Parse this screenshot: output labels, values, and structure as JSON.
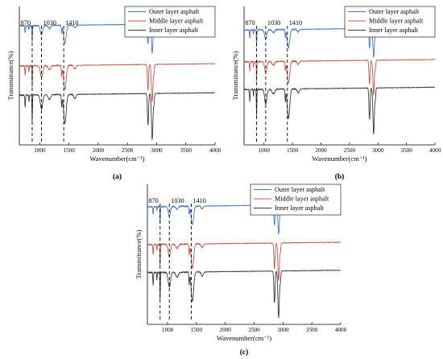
{
  "chart_data": [
    {
      "panel_label": "(a)",
      "type": "line",
      "xlabel": "Wavenumber(cm⁻¹)",
      "ylabel": "Transmittance(%)",
      "xlim": [
        650,
        4000
      ],
      "xticks": [
        1000,
        1500,
        2000,
        2500,
        3000,
        3500,
        4000
      ],
      "y_ticks_shown": false,
      "annotations": [
        870,
        1030,
        1410
      ],
      "legend_placement": "top-right",
      "series": [
        {
          "name": "Outer layer asphalt",
          "color": "#4a72c4",
          "offset": 0.86,
          "depth_scale": 1.0
        },
        {
          "name": "Middle layer asphalt",
          "color": "#c0574b",
          "offset": 0.57,
          "depth_scale": 1.3
        },
        {
          "name": "Inner layer asphalt",
          "color": "#3a3a3a",
          "offset": 0.36,
          "depth_scale": 1.6
        }
      ]
    },
    {
      "panel_label": "(b)",
      "type": "line",
      "xlabel": "Wavenumber(cm⁻¹)",
      "ylabel": "Transmittance(%)",
      "xlim": [
        650,
        4000
      ],
      "xticks": [
        1000,
        1500,
        2000,
        2500,
        3000,
        3500,
        4000
      ],
      "y_ticks_shown": false,
      "annotations": [
        870,
        1030,
        1410
      ],
      "legend_placement": "top-right",
      "series": [
        {
          "name": "Outer layer asphalt",
          "color": "#4a72c4",
          "offset": 0.83,
          "depth_scale": 1.0
        },
        {
          "name": "Middle layer asphalt",
          "color": "#c0574b",
          "offset": 0.6,
          "depth_scale": 1.2
        },
        {
          "name": "Inner layer asphalt",
          "color": "#3a3a3a",
          "offset": 0.4,
          "depth_scale": 1.6
        }
      ]
    },
    {
      "panel_label": "(c)",
      "type": "line",
      "xlabel": "Wavenumber(cm⁻¹)",
      "ylabel": "Transmittance(%)",
      "xlim": [
        650,
        4000
      ],
      "xticks": [
        1000,
        1500,
        2000,
        2500,
        3000,
        3500,
        4000
      ],
      "y_ticks_shown": false,
      "annotations": [
        870,
        1030,
        1410
      ],
      "legend_placement": "top-right",
      "series": [
        {
          "name": "Outer layer asphalt",
          "color": "#4a72c4",
          "offset": 0.84,
          "depth_scale": 1.0
        },
        {
          "name": "Middle layer asphalt",
          "color": "#c0574b",
          "offset": 0.57,
          "depth_scale": 1.3
        },
        {
          "name": "Inner layer asphalt",
          "color": "#3a3a3a",
          "offset": 0.37,
          "depth_scale": 1.6
        }
      ]
    }
  ]
}
